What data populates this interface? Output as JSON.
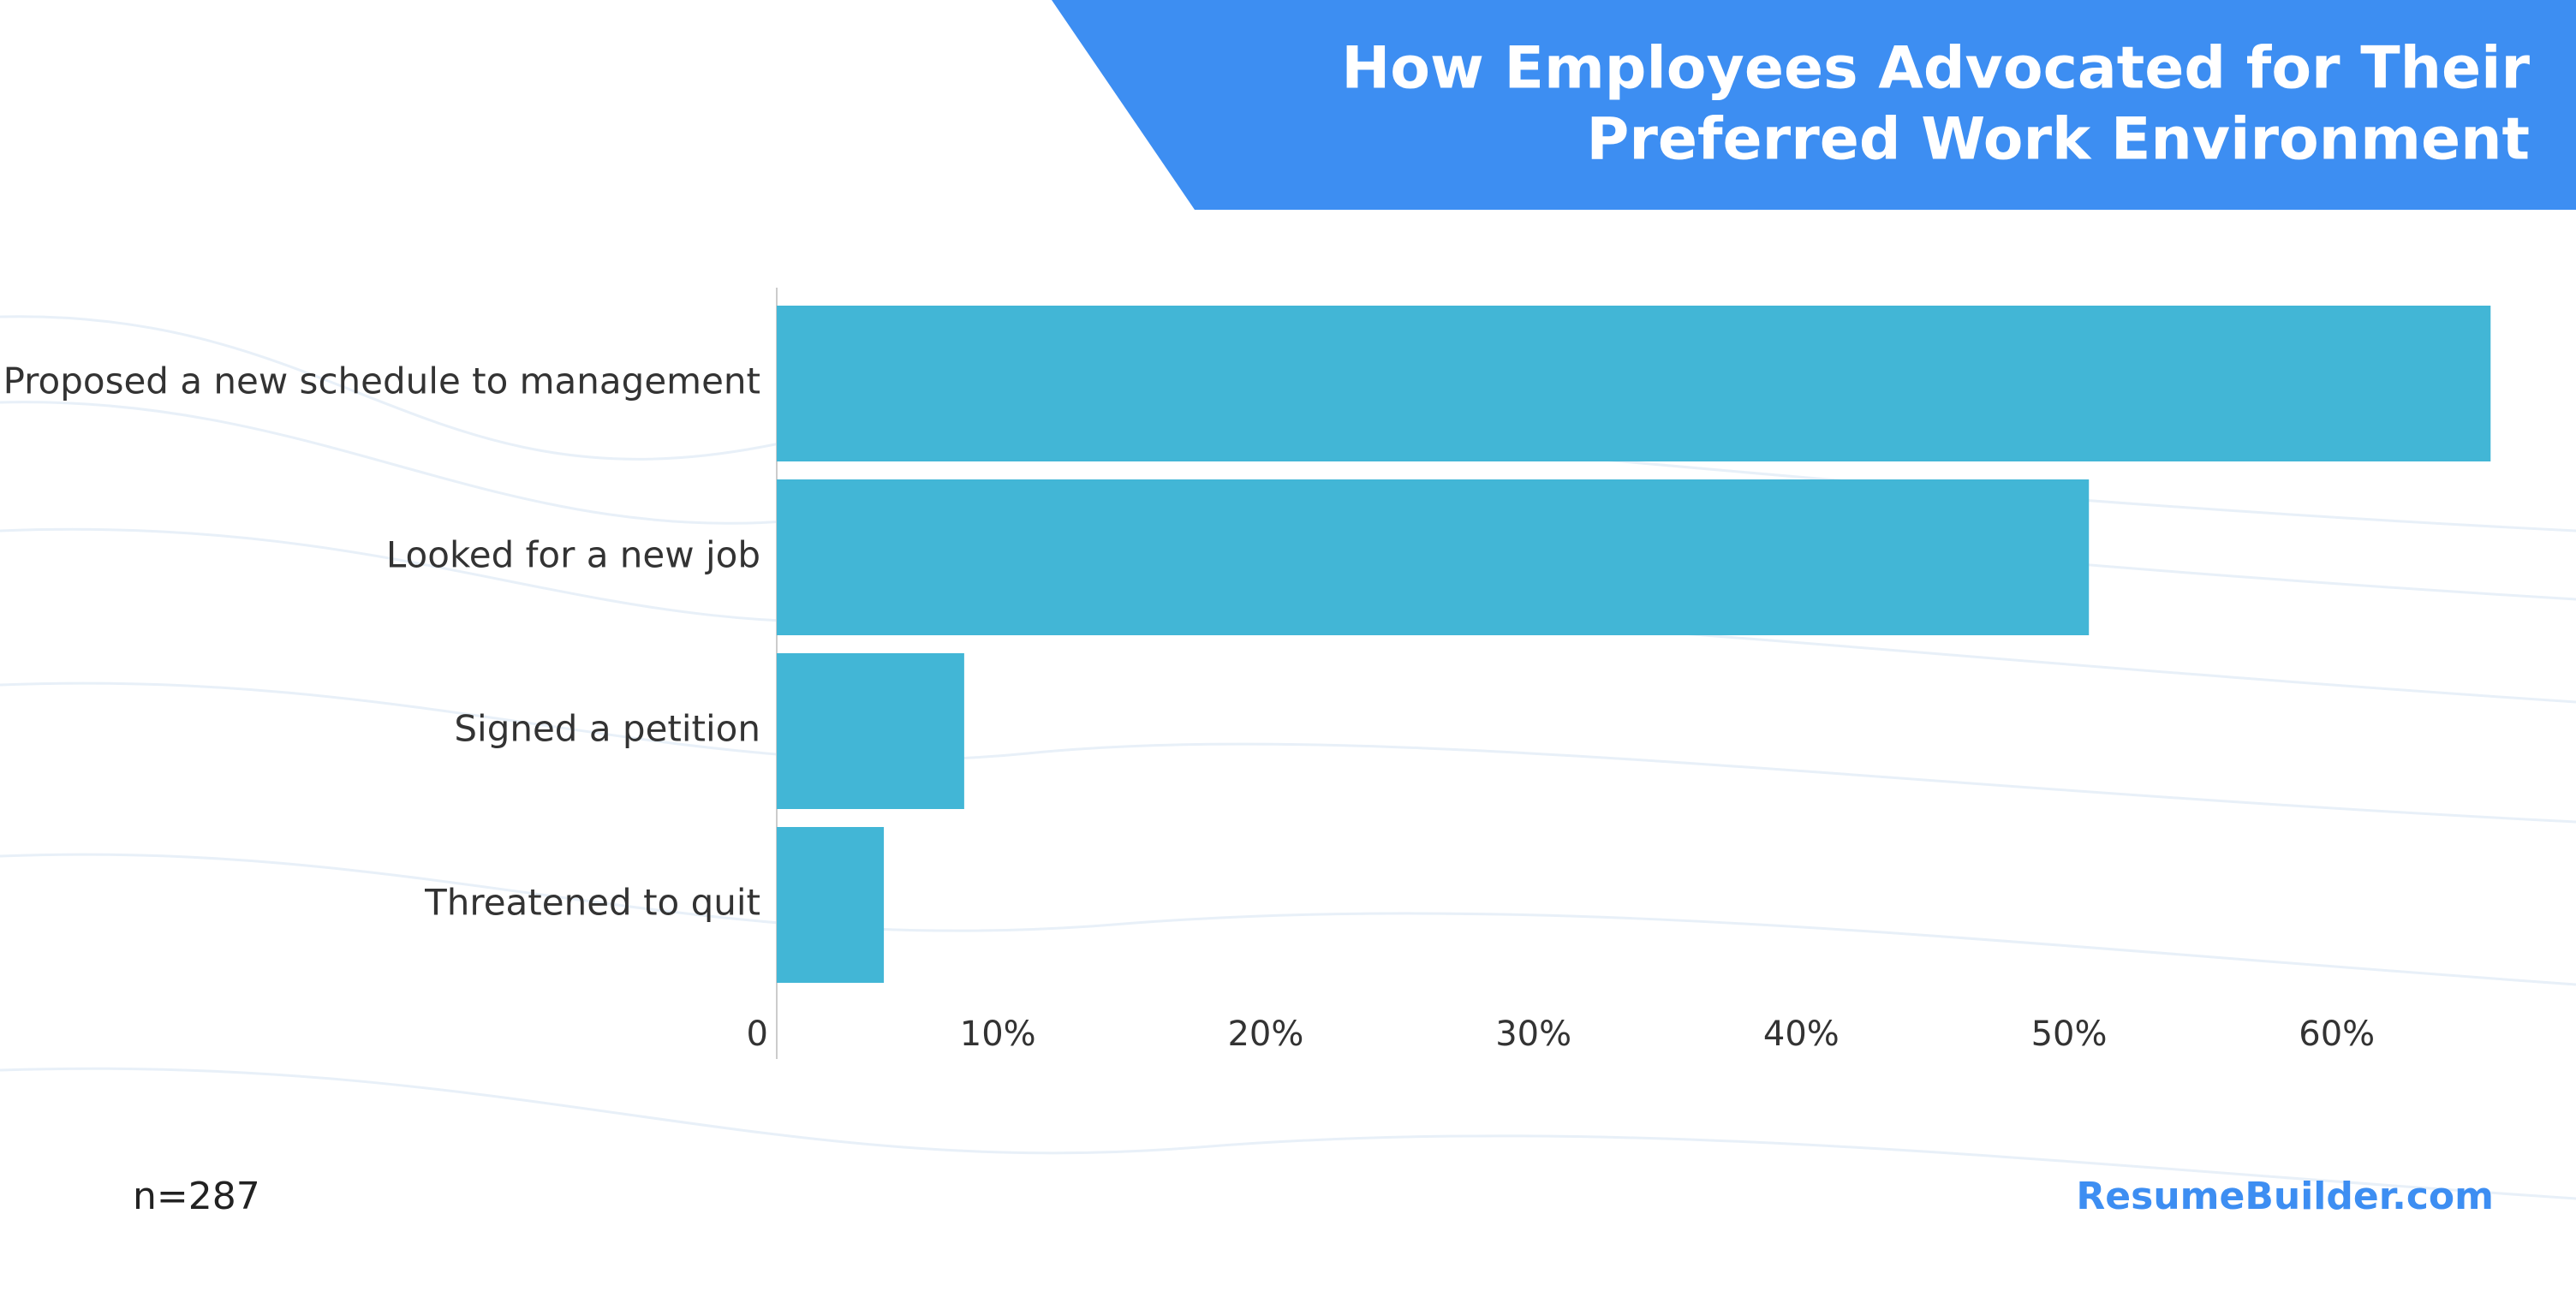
{
  "chart_data": {
    "type": "bar",
    "orientation": "horizontal",
    "title": [
      "How Employees Advocated for Their",
      "Preferred Work Environment"
    ],
    "categories": [
      "Proposed a new schedule to management",
      "Looked for a new job",
      "Signed a petition",
      "Threatened to quit"
    ],
    "values": [
      64,
      49,
      7,
      4
    ],
    "color": "#42b6d6",
    "xlim": [
      0,
      66
    ],
    "xticks": [
      0,
      {
        "value": 10,
        "label": "10%"
      },
      {
        "value": 20,
        "label": "20%"
      },
      {
        "value": 30,
        "label": "30%"
      },
      {
        "value": 40,
        "label": "40%"
      },
      {
        "value": 50,
        "label": "50%"
      },
      {
        "value": 60,
        "label": "60%"
      }
    ],
    "note": "n=287",
    "source": "ResumeBuilder.com"
  }
}
